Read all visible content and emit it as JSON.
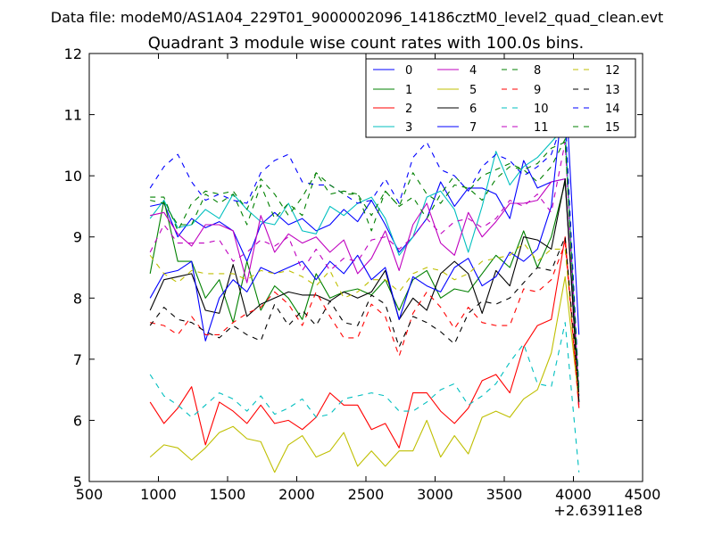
{
  "figure": {
    "suptitle": "Data file: modeM0/AS1A04_229T01_9000002096_14186cztM0_level2_quad_clean.evt",
    "title": "Quadrant 3 module wise count rates with 100.0s bins."
  },
  "chart_data": {
    "type": "line",
    "title": "Quadrant 3 module wise count rates with 100.0s bins.",
    "xlabel": "",
    "ylabel": "",
    "x_offset_label": "+2.63911e8",
    "xlim": [
      500,
      4500
    ],
    "ylim": [
      5,
      12
    ],
    "xticks": [
      500,
      1000,
      1500,
      2000,
      2500,
      3000,
      3500,
      4000,
      4500
    ],
    "yticks": [
      5,
      6,
      7,
      8,
      9,
      10,
      11,
      12
    ],
    "grid": false,
    "legend_position": "top-right",
    "x": [
      940,
      1040,
      1140,
      1240,
      1340,
      1440,
      1540,
      1640,
      1740,
      1840,
      1940,
      2040,
      2140,
      2240,
      2340,
      2440,
      2540,
      2640,
      2740,
      2840,
      2940,
      3040,
      3140,
      3240,
      3340,
      3440,
      3540,
      3640,
      3740,
      3840,
      3940,
      4040
    ],
    "series": [
      {
        "name": "0",
        "color": "#0000ff",
        "dash": "solid",
        "values": [
          9.5,
          9.55,
          9.0,
          9.3,
          9.15,
          9.25,
          9.1,
          8.6,
          9.2,
          9.4,
          9.2,
          9.3,
          9.1,
          9.2,
          9.45,
          9.25,
          9.6,
          9.2,
          8.75,
          9.0,
          9.3,
          9.9,
          9.5,
          9.8,
          9.8,
          9.7,
          9.3,
          10.25,
          9.8,
          9.9,
          9.95,
          6.4
        ]
      },
      {
        "name": "1",
        "color": "#008000",
        "dash": "solid",
        "values": [
          8.4,
          9.6,
          8.6,
          8.6,
          8.0,
          8.3,
          7.6,
          8.6,
          7.8,
          8.2,
          8.0,
          7.65,
          8.4,
          8.0,
          8.1,
          8.15,
          8.05,
          8.3,
          7.8,
          8.3,
          8.45,
          8.0,
          8.15,
          8.1,
          8.4,
          8.7,
          8.5,
          9.1,
          8.5,
          9.0,
          9.9,
          6.3
        ]
      },
      {
        "name": "2",
        "color": "#ff0000",
        "dash": "solid",
        "values": [
          6.3,
          5.95,
          6.2,
          6.55,
          5.6,
          6.3,
          6.15,
          5.95,
          6.25,
          5.95,
          6.0,
          5.85,
          6.05,
          6.45,
          6.25,
          6.25,
          5.85,
          5.95,
          5.55,
          6.45,
          6.45,
          6.15,
          5.95,
          6.2,
          6.65,
          6.75,
          6.45,
          7.2,
          7.55,
          7.65,
          9.0,
          6.2
        ]
      },
      {
        "name": "3",
        "color": "#00bfbf",
        "dash": "solid",
        "values": [
          9.3,
          9.6,
          9.15,
          9.2,
          9.45,
          9.3,
          9.7,
          9.45,
          9.25,
          9.2,
          9.55,
          9.1,
          9.05,
          9.5,
          9.35,
          9.55,
          9.65,
          9.3,
          8.7,
          9.0,
          9.65,
          9.75,
          9.45,
          8.75,
          9.5,
          10.4,
          9.85,
          10.15,
          10.3,
          10.55,
          10.8,
          6.3
        ]
      },
      {
        "name": "4",
        "color": "#bf00bf",
        "dash": "solid",
        "values": [
          9.35,
          9.4,
          9.05,
          8.85,
          9.2,
          9.2,
          9.1,
          8.25,
          9.35,
          8.75,
          9.05,
          8.9,
          9.0,
          8.75,
          8.95,
          8.4,
          8.65,
          9.1,
          8.45,
          9.2,
          9.55,
          8.9,
          8.7,
          9.4,
          9.0,
          9.25,
          9.55,
          9.55,
          9.6,
          9.9,
          9.95,
          6.25
        ]
      },
      {
        "name": "5",
        "color": "#bfbf00",
        "dash": "solid",
        "values": [
          5.4,
          5.6,
          5.55,
          5.35,
          5.55,
          5.8,
          5.9,
          5.7,
          5.65,
          5.15,
          5.6,
          5.75,
          5.4,
          5.5,
          5.8,
          5.25,
          5.5,
          5.25,
          5.5,
          5.5,
          6.0,
          5.4,
          5.75,
          5.45,
          6.05,
          6.15,
          6.05,
          6.35,
          6.5,
          7.1,
          8.35,
          6.3
        ]
      },
      {
        "name": "6",
        "color": "#000000",
        "dash": "solid",
        "values": [
          7.8,
          8.3,
          8.35,
          8.4,
          7.8,
          7.75,
          8.55,
          7.7,
          7.9,
          8.0,
          8.1,
          8.05,
          8.05,
          7.95,
          8.1,
          8.0,
          8.1,
          8.45,
          7.65,
          8.0,
          7.8,
          8.4,
          8.6,
          8.4,
          7.75,
          8.45,
          8.2,
          9.0,
          8.95,
          8.8,
          9.95,
          6.3
        ]
      },
      {
        "name": "7",
        "color": "#0000ff",
        "dash": "solid",
        "values": [
          8.0,
          8.4,
          8.45,
          8.6,
          7.3,
          8.0,
          8.3,
          8.1,
          8.5,
          8.4,
          8.5,
          8.6,
          8.3,
          8.6,
          8.4,
          8.7,
          8.3,
          8.5,
          7.65,
          8.35,
          8.2,
          8.1,
          8.5,
          8.65,
          8.2,
          8.35,
          8.75,
          8.6,
          8.8,
          9.5,
          11.6,
          7.4
        ]
      },
      {
        "name": "8",
        "color": "#008000",
        "dash": "dashed",
        "values": [
          9.6,
          9.55,
          9.2,
          9.2,
          9.7,
          9.55,
          9.7,
          9.2,
          9.85,
          9.3,
          9.55,
          9.35,
          10.05,
          9.7,
          9.75,
          9.7,
          9.1,
          9.75,
          9.5,
          9.65,
          9.3,
          9.7,
          10.0,
          9.75,
          10.0,
          10.1,
          10.2,
          10.1,
          9.9,
          10.15,
          10.6,
          6.5
        ]
      },
      {
        "name": "9",
        "color": "#ff0000",
        "dash": "dashed",
        "values": [
          7.6,
          7.55,
          7.4,
          7.7,
          7.4,
          7.4,
          7.6,
          7.75,
          7.85,
          8.1,
          7.9,
          7.55,
          8.1,
          7.7,
          7.35,
          7.35,
          7.9,
          7.7,
          7.05,
          7.75,
          8.1,
          7.85,
          7.5,
          7.85,
          7.6,
          7.55,
          7.55,
          8.15,
          8.1,
          8.3,
          8.9,
          6.2
        ]
      },
      {
        "name": "10",
        "color": "#00bfbf",
        "dash": "dashed",
        "values": [
          6.75,
          6.4,
          6.25,
          6.05,
          6.25,
          6.45,
          6.35,
          6.15,
          6.4,
          6.1,
          6.2,
          6.35,
          6.05,
          6.1,
          6.35,
          6.4,
          6.45,
          6.4,
          6.15,
          6.15,
          6.3,
          6.5,
          6.6,
          6.25,
          6.4,
          6.6,
          6.95,
          7.25,
          6.6,
          6.55,
          7.6,
          5.15
        ]
      },
      {
        "name": "11",
        "color": "#bf00bf",
        "dash": "dashed",
        "values": [
          8.75,
          9.2,
          8.9,
          8.9,
          8.9,
          8.95,
          8.6,
          8.75,
          8.95,
          8.85,
          9.0,
          8.45,
          8.8,
          8.45,
          8.65,
          8.6,
          8.95,
          9.0,
          8.8,
          9.0,
          9.3,
          9.05,
          9.25,
          9.3,
          9.15,
          9.3,
          9.6,
          9.5,
          9.7,
          9.4,
          10.55,
          6.4
        ]
      },
      {
        "name": "12",
        "color": "#bfbf00",
        "dash": "dashed",
        "values": [
          8.7,
          8.4,
          8.25,
          8.45,
          8.4,
          8.4,
          8.4,
          8.3,
          8.45,
          8.4,
          8.45,
          8.35,
          8.2,
          8.45,
          8.0,
          8.1,
          8.3,
          8.3,
          8.1,
          8.4,
          8.5,
          8.45,
          8.3,
          8.4,
          8.6,
          8.65,
          8.7,
          8.9,
          8.6,
          8.8,
          8.8,
          6.4
        ]
      },
      {
        "name": "13",
        "color": "#000000",
        "dash": "dashed",
        "values": [
          7.55,
          7.85,
          7.65,
          7.6,
          7.45,
          7.35,
          7.55,
          7.4,
          7.3,
          7.9,
          7.55,
          7.8,
          7.55,
          7.95,
          7.6,
          7.55,
          8.05,
          7.9,
          7.2,
          7.7,
          7.6,
          7.45,
          7.25,
          7.75,
          7.95,
          7.9,
          8.0,
          8.25,
          8.5,
          8.45,
          9.0,
          6.4
        ]
      },
      {
        "name": "14",
        "color": "#0000ff",
        "dash": "dashed",
        "values": [
          9.8,
          10.15,
          10.35,
          9.9,
          9.6,
          9.7,
          9.6,
          9.55,
          10.05,
          10.25,
          10.35,
          9.9,
          9.85,
          9.85,
          9.7,
          9.55,
          9.6,
          9.95,
          9.55,
          10.3,
          10.55,
          10.1,
          10.0,
          9.75,
          10.15,
          10.35,
          10.25,
          10.0,
          10.15,
          10.35,
          11.0,
          6.5
        ]
      },
      {
        "name": "15",
        "color": "#008000",
        "dash": "dashed",
        "values": [
          9.65,
          9.65,
          9.1,
          9.55,
          9.75,
          9.7,
          9.75,
          9.45,
          9.95,
          9.7,
          9.35,
          9.65,
          10.05,
          9.85,
          9.7,
          9.7,
          9.35,
          9.75,
          9.5,
          10.05,
          9.7,
          9.55,
          9.85,
          9.8,
          9.6,
          9.95,
          10.15,
          10.1,
          10.2,
          10.45,
          10.55,
          6.45
        ]
      }
    ]
  }
}
